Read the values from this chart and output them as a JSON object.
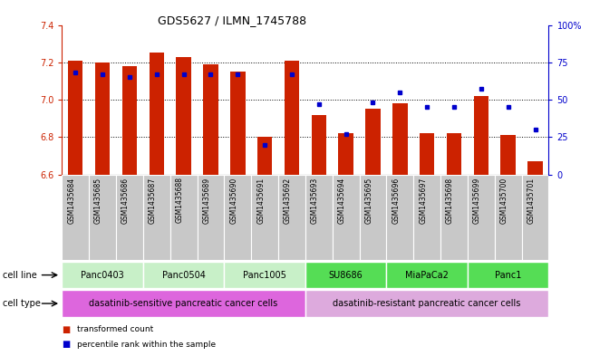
{
  "title": "GDS5627 / ILMN_1745788",
  "samples": [
    "GSM1435684",
    "GSM1435685",
    "GSM1435686",
    "GSM1435687",
    "GSM1435688",
    "GSM1435689",
    "GSM1435690",
    "GSM1435691",
    "GSM1435692",
    "GSM1435693",
    "GSM1435694",
    "GSM1435695",
    "GSM1435696",
    "GSM1435697",
    "GSM1435698",
    "GSM1435699",
    "GSM1435700",
    "GSM1435701"
  ],
  "bar_values": [
    7.21,
    7.2,
    7.18,
    7.25,
    7.23,
    7.19,
    7.15,
    6.8,
    7.21,
    6.92,
    6.82,
    6.95,
    6.98,
    6.82,
    6.82,
    7.02,
    6.81,
    6.67
  ],
  "percentile_values": [
    68,
    67,
    65,
    67,
    67,
    67,
    67,
    20,
    67,
    47,
    27,
    48,
    55,
    45,
    45,
    57,
    45,
    30
  ],
  "y_min": 6.6,
  "y_max": 7.4,
  "bar_color": "#cc2200",
  "percentile_color": "#0000cc",
  "bar_base": 6.6,
  "cell_lines": [
    {
      "name": "Panc0403",
      "start": 0,
      "end": 3,
      "color": "#c8f0c8"
    },
    {
      "name": "Panc0504",
      "start": 3,
      "end": 6,
      "color": "#c8f0c8"
    },
    {
      "name": "Panc1005",
      "start": 6,
      "end": 9,
      "color": "#c8f0c8"
    },
    {
      "name": "SU8686",
      "start": 9,
      "end": 12,
      "color": "#55dd55"
    },
    {
      "name": "MiaPaCa2",
      "start": 12,
      "end": 15,
      "color": "#55dd55"
    },
    {
      "name": "Panc1",
      "start": 15,
      "end": 18,
      "color": "#55dd55"
    }
  ],
  "cell_types": [
    {
      "name": "dasatinib-sensitive pancreatic cancer cells",
      "start": 0,
      "end": 9,
      "color": "#dd66dd"
    },
    {
      "name": "dasatinib-resistant pancreatic cancer cells",
      "start": 9,
      "end": 18,
      "color": "#ddaadd"
    }
  ],
  "grid_values": [
    6.8,
    7.0,
    7.2
  ],
  "right_axis_ticks": [
    0,
    25,
    50,
    75,
    100
  ],
  "right_axis_color": "#0000cc",
  "left_axis_color": "#cc2200",
  "yticks": [
    6.6,
    6.8,
    7.0,
    7.2,
    7.4
  ],
  "legend_items": [
    {
      "label": "transformed count",
      "color": "#cc2200"
    },
    {
      "label": "percentile rank within the sample",
      "color": "#0000cc"
    }
  ]
}
